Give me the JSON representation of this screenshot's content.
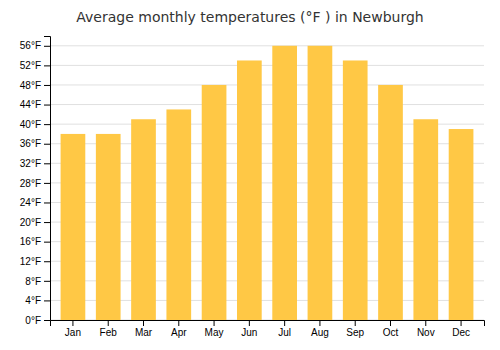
{
  "chart_data": {
    "type": "bar",
    "title": "Average monthly temperatures (°F ) in Newburgh",
    "categories": [
      "Jan",
      "Feb",
      "Mar",
      "Apr",
      "May",
      "Jun",
      "Jul",
      "Aug",
      "Sep",
      "Oct",
      "Nov",
      "Dec"
    ],
    "values": [
      38,
      38,
      41,
      43,
      48,
      53,
      56,
      56,
      53,
      48,
      41,
      39
    ],
    "color": "#FFC845",
    "ylim": [
      0,
      58
    ],
    "yticks": [
      {
        "value": 0,
        "label": "0°F"
      },
      {
        "value": 4,
        "label": "4°F"
      },
      {
        "value": 8,
        "label": "8°F"
      },
      {
        "value": 12,
        "label": "12°F"
      },
      {
        "value": 16,
        "label": "16°F"
      },
      {
        "value": 20,
        "label": "20°F"
      },
      {
        "value": 24,
        "label": "24°F"
      },
      {
        "value": 28,
        "label": "28°F"
      },
      {
        "value": 32,
        "label": "32°F"
      },
      {
        "value": 36,
        "label": "36°F"
      },
      {
        "value": 40,
        "label": "40°F"
      },
      {
        "value": 44,
        "label": "44°F"
      },
      {
        "value": 48,
        "label": "48°F"
      },
      {
        "value": 52,
        "label": "52°F"
      },
      {
        "value": 56,
        "label": "56°F"
      }
    ],
    "grid": true
  }
}
